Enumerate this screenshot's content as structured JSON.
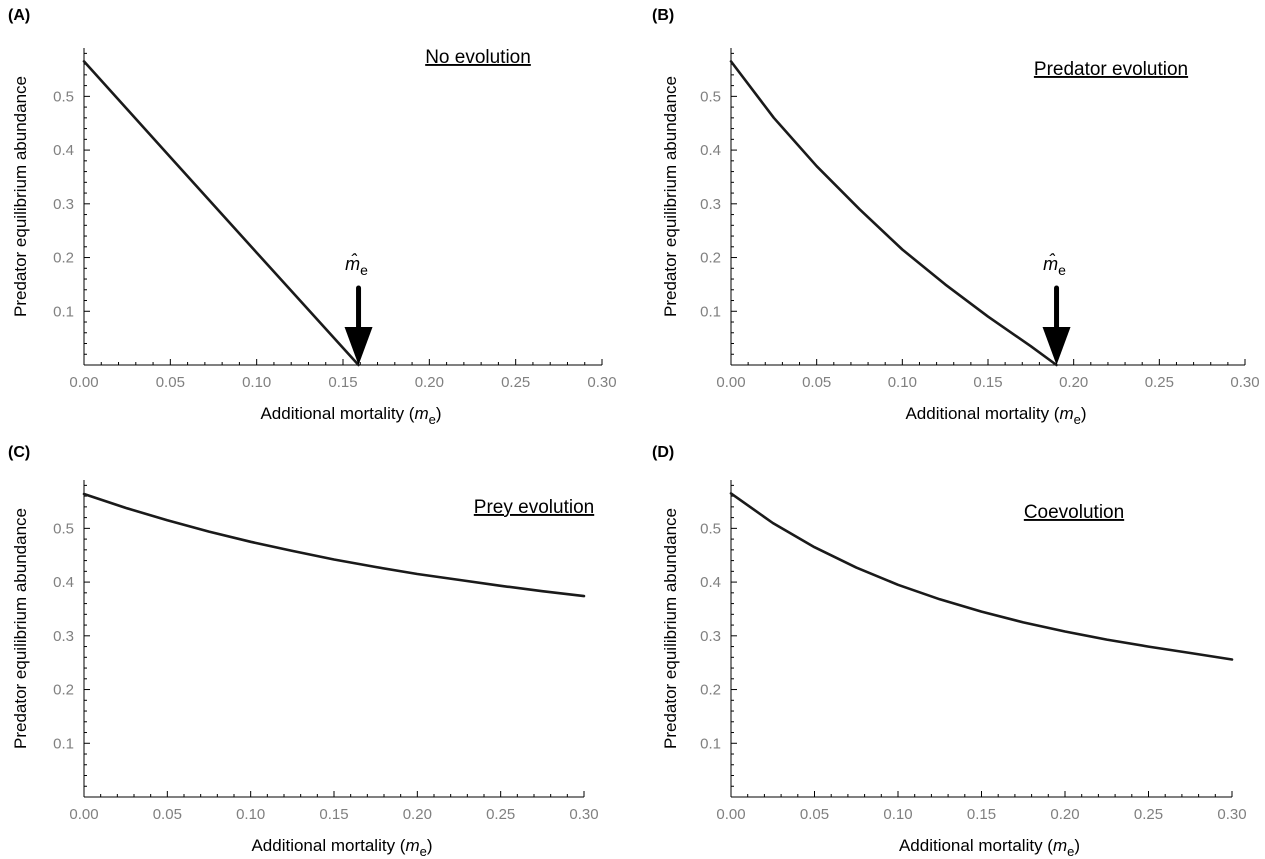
{
  "figure": {
    "panels": [
      {
        "id": "A",
        "label": "(A)",
        "title": "No evolution",
        "threshold_label": "m̂",
        "threshold_subscript": "e"
      },
      {
        "id": "B",
        "label": "(B)",
        "title": "Predator evolution",
        "threshold_label": "m̂",
        "threshold_subscript": "e"
      },
      {
        "id": "C",
        "label": "(C)",
        "title": "Prey evolution"
      },
      {
        "id": "D",
        "label": "(D)",
        "title": "Coevolution"
      }
    ]
  },
  "chart_data": [
    {
      "panel": "A",
      "type": "line",
      "title": "No evolution",
      "xlabel": "Additional mortality (me)",
      "xlabel_main": "Additional mortality (",
      "xlabel_var": "m",
      "xlabel_sub": "e",
      "xlabel_end": ")",
      "ylabel": "Predator equilibrium abundance",
      "xlim": [
        0,
        0.3
      ],
      "ylim": [
        0,
        0.59
      ],
      "xticks": [
        "0.00",
        "0.05",
        "0.10",
        "0.15",
        "0.20",
        "0.25",
        "0.30"
      ],
      "yticks": [
        "0.1",
        "0.2",
        "0.3",
        "0.4",
        "0.5"
      ],
      "series": [
        {
          "x": [
            0,
            0.05,
            0.1,
            0.159
          ],
          "y": [
            0.565,
            0.387,
            0.209,
            0.0
          ]
        }
      ],
      "threshold_x": 0.159
    },
    {
      "panel": "B",
      "type": "line",
      "title": "Predator evolution",
      "xlabel": "Additional mortality (me)",
      "xlabel_main": "Additional mortality (",
      "xlabel_var": "m",
      "xlabel_sub": "e",
      "xlabel_end": ")",
      "ylabel": "Predator equilibrium abundance",
      "xlim": [
        0,
        0.3
      ],
      "ylim": [
        0,
        0.59
      ],
      "xticks": [
        "0.00",
        "0.05",
        "0.10",
        "0.15",
        "0.20",
        "0.25",
        "0.30"
      ],
      "yticks": [
        "0.1",
        "0.2",
        "0.3",
        "0.4",
        "0.5"
      ],
      "series": [
        {
          "x": [
            0,
            0.025,
            0.05,
            0.075,
            0.1,
            0.125,
            0.15,
            0.175,
            0.19
          ],
          "y": [
            0.565,
            0.46,
            0.37,
            0.29,
            0.215,
            0.15,
            0.09,
            0.035,
            0.0
          ]
        }
      ],
      "threshold_x": 0.19
    },
    {
      "panel": "C",
      "type": "line",
      "title": "Prey evolution",
      "xlabel": "Additional mortality (me)",
      "xlabel_main": "Additional mortality (",
      "xlabel_var": "m",
      "xlabel_sub": "e",
      "xlabel_end": ")",
      "ylabel": "Predator  equilibrium abundance",
      "xlim": [
        0,
        0.3
      ],
      "ylim": [
        0,
        0.59
      ],
      "xticks": [
        "0.00",
        "0.05",
        "0.10",
        "0.15",
        "0.20",
        "0.25",
        "0.30"
      ],
      "yticks": [
        "0.1",
        "0.2",
        "0.3",
        "0.4",
        "0.5"
      ],
      "series": [
        {
          "x": [
            0,
            0.025,
            0.05,
            0.075,
            0.1,
            0.125,
            0.15,
            0.175,
            0.2,
            0.225,
            0.25,
            0.275,
            0.3
          ],
          "y": [
            0.564,
            0.538,
            0.515,
            0.494,
            0.475,
            0.458,
            0.442,
            0.428,
            0.415,
            0.404,
            0.393,
            0.383,
            0.374
          ]
        }
      ]
    },
    {
      "panel": "D",
      "type": "line",
      "title": "Coevolution",
      "xlabel": "Additional mortality (me)",
      "xlabel_main": "Additional mortality (",
      "xlabel_var": "m",
      "xlabel_sub": "e",
      "xlabel_end": ")",
      "ylabel": "Predator  equilibrium abundance",
      "xlim": [
        0,
        0.3
      ],
      "ylim": [
        0,
        0.59
      ],
      "xticks": [
        "0.00",
        "0.05",
        "0.10",
        "0.15",
        "0.20",
        "0.25",
        "0.30"
      ],
      "yticks": [
        "0.1",
        "0.2",
        "0.3",
        "0.4",
        "0.5"
      ],
      "series": [
        {
          "x": [
            0,
            0.025,
            0.05,
            0.075,
            0.1,
            0.125,
            0.15,
            0.175,
            0.2,
            0.225,
            0.25,
            0.275,
            0.3
          ],
          "y": [
            0.565,
            0.51,
            0.465,
            0.427,
            0.395,
            0.368,
            0.345,
            0.325,
            0.308,
            0.293,
            0.28,
            0.268,
            0.256
          ]
        }
      ]
    }
  ]
}
